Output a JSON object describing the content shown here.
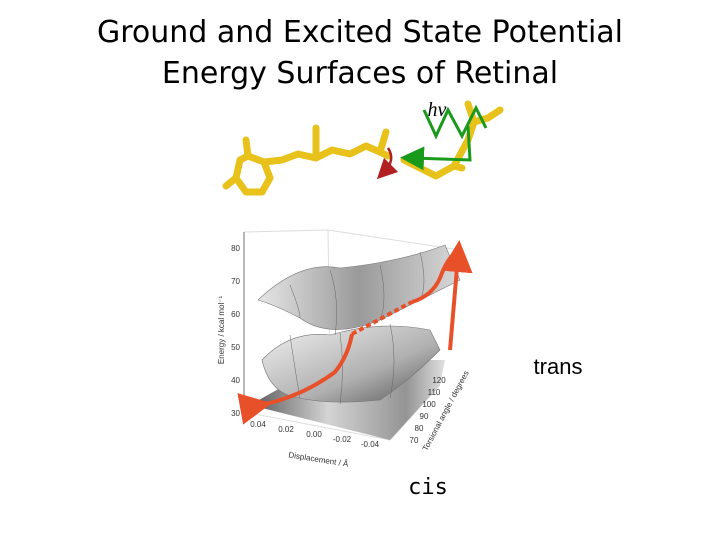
{
  "title": [
    "Ground and Excited State Potential",
    "Energy Surfaces of Retinal"
  ],
  "photon_label": "hν",
  "labels": {
    "trans": "trans",
    "cis": "cis"
  },
  "plot": {
    "energy_axis": {
      "label": "Energy / kcal mol⁻¹",
      "ticks": [
        "30",
        "40",
        "50",
        "60",
        "70",
        "80"
      ]
    },
    "displacement_axis": {
      "label": "Displacement / Å",
      "ticks": [
        "0.04",
        "0.02",
        "0.00",
        "-0.02",
        "-0.04"
      ]
    },
    "torsion_axis": {
      "label": "Torsional angle / degrees",
      "ticks": [
        "70",
        "80",
        "90",
        "100",
        "110",
        "120"
      ]
    }
  }
}
